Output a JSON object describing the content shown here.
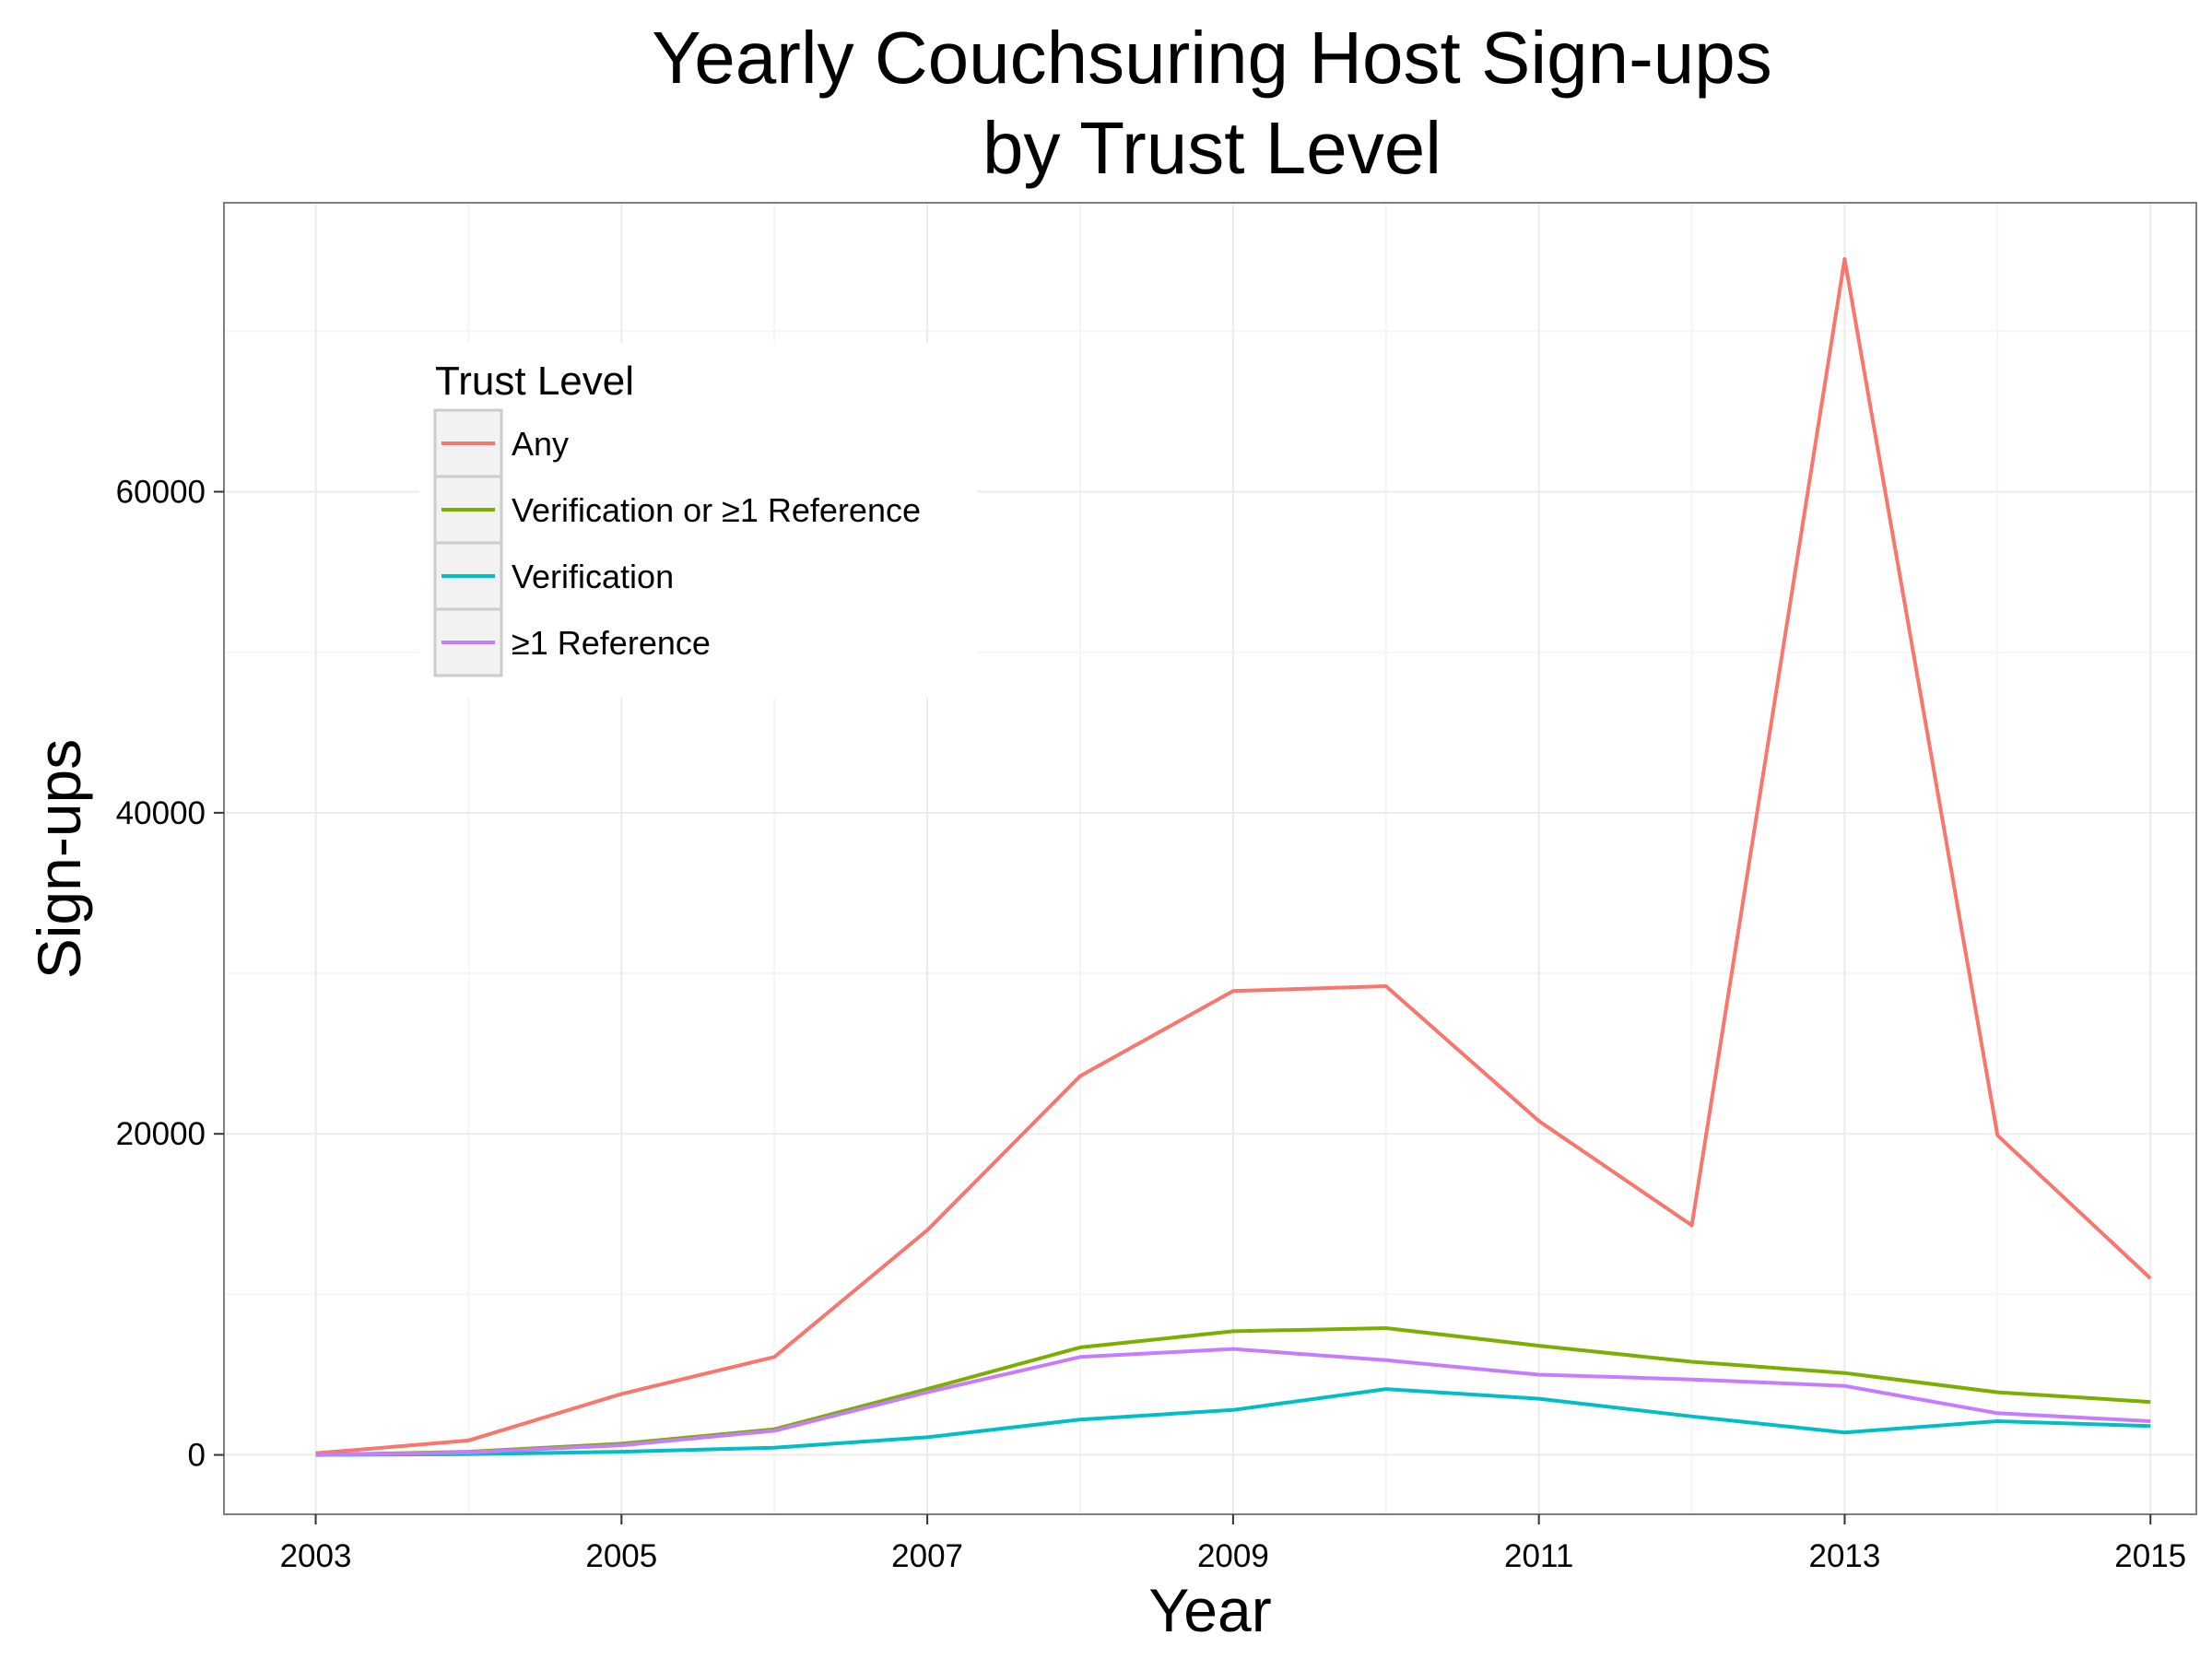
{
  "chart_data": {
    "type": "line",
    "title_line1": "Yearly Couchsuring Host Sign-ups",
    "title_line2": "by Trust Level",
    "xlabel": "Year",
    "ylabel": "Sign-ups",
    "x": [
      2003,
      2004,
      2005,
      2006,
      2007,
      2008,
      2009,
      2010,
      2011,
      2012,
      2013,
      2014,
      2015
    ],
    "xlim": [
      2002.4,
      2015.3
    ],
    "ylim": [
      -3700,
      78000
    ],
    "x_ticks": [
      2003,
      2005,
      2007,
      2009,
      2011,
      2013,
      2015
    ],
    "x_tick_labels": [
      "2003",
      "2005",
      "2007",
      "2009",
      "2011",
      "2013",
      "2015"
    ],
    "y_ticks": [
      0,
      20000,
      40000,
      60000
    ],
    "y_tick_labels": [
      "0",
      "20000",
      "40000",
      "60000"
    ],
    "grid": true,
    "legend_title": "Trust Level",
    "legend_position": "top-left inside",
    "series": [
      {
        "name": "Any",
        "color": "#F8766D",
        "values": [
          100,
          900,
          3800,
          6100,
          14000,
          23600,
          28900,
          29200,
          20800,
          14300,
          74500,
          19900,
          11000
        ]
      },
      {
        "name": "Verification or ≥1 Reference",
        "color": "#7CAE00",
        "values": [
          0,
          200,
          700,
          1600,
          4100,
          6700,
          7700,
          7900,
          6800,
          5800,
          5100,
          3900,
          3300
        ]
      },
      {
        "name": "Verification",
        "color": "#00BFC4",
        "values": [
          0,
          50,
          200,
          450,
          1100,
          2200,
          2800,
          4100,
          3500,
          2400,
          1400,
          2100,
          1800
        ]
      },
      {
        "name": "≥1 Reference",
        "color": "#C77CFF",
        "values": [
          0,
          150,
          600,
          1500,
          3900,
          6100,
          6600,
          5900,
          5000,
          4700,
          4300,
          2600,
          2100
        ]
      }
    ]
  }
}
